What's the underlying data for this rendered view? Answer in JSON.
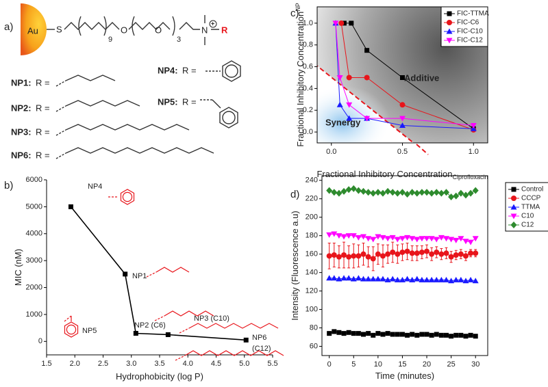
{
  "scheme": {
    "panel_label": "a)",
    "metal": "Au",
    "linker_atom": "S",
    "repeat_a": "9",
    "ether_a": "O",
    "ether_b": "O",
    "repeat_b": "3",
    "ammonium": "N",
    "charge": "+",
    "r_group": "R",
    "substituents": [
      {
        "name": "NP1:",
        "formula": "R ="
      },
      {
        "name": "NP2:",
        "formula": "R ="
      },
      {
        "name": "NP3:",
        "formula": "R ="
      },
      {
        "name": "NP6:",
        "formula": "R ="
      },
      {
        "name": "NP4:",
        "formula": "R ="
      },
      {
        "name": "NP5:",
        "formula": "R ="
      }
    ]
  },
  "chart_data": [
    {
      "type": "line",
      "panel_label": "b)",
      "xlabel": "Hydrophobicity (log P)",
      "ylabel": "MIC (nM)",
      "x": [
        1.93,
        2.89,
        3.08,
        3.65,
        5.03
      ],
      "values": [
        5000,
        2500,
        300,
        250,
        50
      ],
      "color": "#000000",
      "marker": "square",
      "xlim": [
        1.5,
        5.5
      ],
      "xticks": [
        1.5,
        {
          "value": 2,
          "label": "2.0"
        },
        2.5,
        {
          "value": 3,
          "label": "3.0"
        },
        3.5,
        {
          "value": 4,
          "label": "4.0"
        },
        4.5,
        {
          "value": 5,
          "label": "5.0"
        },
        5.5
      ],
      "ylim": [
        -500,
        6000
      ],
      "yticks": [
        0,
        1000,
        2000,
        3000,
        4000,
        5000,
        6000
      ],
      "grid": false,
      "frame": false,
      "annotations": [
        "NP4",
        "NP1",
        "NP2 (C6)",
        "NP3 (C10)",
        "NP5",
        "NP6",
        "(C12)"
      ]
    },
    {
      "type": "line",
      "panel_label": "c)",
      "xlabel": "Fractional Inhibitory Concentration",
      "xlabel_sub": "Ciprofloxacin",
      "ylabel": "Fractional Inhibitory Concentration",
      "ylabel_sub": "NP",
      "series": [
        {
          "name": "FIC-TTMA",
          "color": "#000000",
          "marker": "square",
          "x": [
            0.09,
            0.14,
            0.25,
            0.5,
            1.0
          ],
          "values": [
            1.0,
            1.0,
            0.75,
            0.5,
            0.03
          ]
        },
        {
          "name": "FIC-C6",
          "color": "#e8151b",
          "marker": "circle",
          "x": [
            0.07,
            0.125,
            0.25,
            0.5,
            1.0
          ],
          "values": [
            1.0,
            0.5,
            0.5,
            0.25,
            0.02
          ]
        },
        {
          "name": "FIC-C10",
          "color": "#1a1aff",
          "marker": "triangle-up",
          "x": [
            0.03,
            0.06,
            0.125,
            0.25,
            0.5,
            1.0
          ],
          "values": [
            1.0,
            0.25,
            0.125,
            0.125,
            0.06,
            0.03
          ]
        },
        {
          "name": "FIC-C12",
          "color": "#ff00ff",
          "marker": "triangle-down",
          "x": [
            0.03,
            0.06,
            0.125,
            0.25,
            0.5,
            1.0
          ],
          "values": [
            1.0,
            0.5,
            0.25,
            0.125,
            0.125,
            0.06
          ]
        }
      ],
      "xlim": [
        -0.1,
        1.1
      ],
      "xticks": [
        {
          "value": 0,
          "label": "0.0"
        },
        0.5,
        {
          "value": 1,
          "label": "1.0"
        }
      ],
      "ylim": [
        -0.1,
        1.15
      ],
      "yticks": [
        {
          "value": 0,
          "label": "0.0"
        },
        0.2,
        0.4,
        0.6,
        0.8,
        {
          "value": 1,
          "label": "1.0"
        }
      ],
      "grid": false,
      "frame": true,
      "legend": "top-right",
      "annotations": [
        "Additive",
        "Synergy"
      ]
    },
    {
      "type": "line",
      "panel_label": "d)",
      "xlabel": "Time (minutes)",
      "ylabel": "Intensity (Fluorescence a.u)",
      "x": [
        0,
        1,
        2,
        3,
        4,
        5,
        6,
        7,
        8,
        9,
        10,
        11,
        12,
        13,
        14,
        15,
        16,
        17,
        18,
        19,
        20,
        21,
        22,
        23,
        24,
        25,
        26,
        27,
        28,
        29,
        30
      ],
      "series": [
        {
          "name": "Control",
          "color": "#000000",
          "marker": "square",
          "values": [
            74,
            76,
            75,
            74,
            75,
            74,
            74,
            73,
            74,
            72,
            74,
            73,
            74,
            73,
            73,
            73,
            72,
            73,
            72,
            73,
            73,
            72,
            73,
            72,
            72,
            71,
            72,
            72,
            71,
            72,
            71
          ]
        },
        {
          "name": "CCCP",
          "color": "#e8151b",
          "marker": "circle",
          "values": [
            158,
            159,
            157,
            159,
            157,
            158,
            158,
            160,
            157,
            155,
            160,
            158,
            160,
            162,
            160,
            162,
            163,
            161,
            161,
            162,
            163,
            160,
            162,
            160,
            161,
            157,
            159,
            160,
            158,
            161,
            161
          ],
          "errors": [
            14,
            13,
            12,
            14,
            12,
            13,
            12,
            12,
            11,
            13,
            11,
            12,
            10,
            11,
            10,
            9,
            9,
            8,
            8,
            7,
            7,
            7,
            6,
            6,
            6,
            6,
            5,
            5,
            5,
            4,
            4
          ]
        },
        {
          "name": "TTMA",
          "color": "#1a1aff",
          "marker": "triangle-up",
          "values": [
            134,
            134,
            133,
            134,
            134,
            133,
            134,
            133,
            133,
            133,
            133,
            133,
            132,
            133,
            132,
            132,
            133,
            132,
            133,
            132,
            132,
            132,
            132,
            132,
            132,
            131,
            132,
            132,
            131,
            132,
            131
          ]
        },
        {
          "name": "C10",
          "color": "#ff00ff",
          "marker": "triangle-down",
          "values": [
            181,
            182,
            180,
            179,
            180,
            180,
            178,
            179,
            177,
            176,
            179,
            178,
            177,
            178,
            176,
            177,
            178,
            177,
            176,
            177,
            177,
            177,
            176,
            178,
            177,
            176,
            175,
            177,
            174,
            173,
            177
          ]
        },
        {
          "name": "C12",
          "color": "#2e8b2e",
          "marker": "diamond",
          "values": [
            229,
            227,
            226,
            228,
            230,
            231,
            229,
            228,
            227,
            226,
            227,
            226,
            228,
            227,
            226,
            227,
            225,
            227,
            226,
            227,
            227,
            226,
            227,
            226,
            227,
            222,
            223,
            226,
            224,
            226,
            229
          ]
        }
      ],
      "xlim": [
        -1.5,
        32.5
      ],
      "xticks": [
        0,
        5,
        10,
        15,
        20,
        25,
        30
      ],
      "ylim": [
        50,
        245
      ],
      "yticks": [
        60,
        80,
        100,
        120,
        140,
        160,
        180,
        200,
        220,
        240
      ],
      "grid": false,
      "frame": true,
      "legend": "right"
    }
  ]
}
